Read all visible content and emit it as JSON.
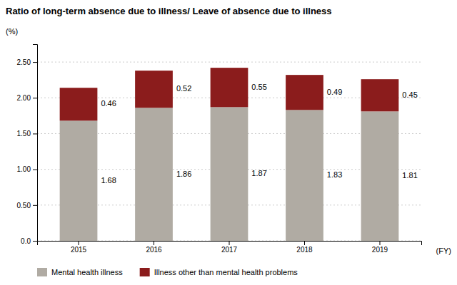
{
  "chart_data": {
    "type": "bar",
    "title": "Ratio of long-term absence due to illness/ Leave of absence due to illness",
    "ylabel": "(%)",
    "xlabel": "(FY)",
    "categories": [
      "2015",
      "2016",
      "2017",
      "2018",
      "2019"
    ],
    "series": [
      {
        "name": "Mental health illness",
        "color": "#b0aba3",
        "values": [
          1.68,
          1.86,
          1.87,
          1.83,
          1.81
        ]
      },
      {
        "name": "Illness other than mental health problems",
        "color": "#8b1c1c",
        "values": [
          0.46,
          0.52,
          0.55,
          0.49,
          0.45
        ]
      }
    ],
    "stacked": true,
    "data_labels": true,
    "ylim": [
      0,
      2.75
    ],
    "yticks": [
      {
        "value": 0,
        "label": "0.0"
      },
      {
        "value": 0.5,
        "label": "0.50"
      },
      {
        "value": 1,
        "label": "1.00"
      },
      {
        "value": 1.5,
        "label": "1.50"
      },
      {
        "value": 2,
        "label": "2.00"
      },
      {
        "value": 2.5,
        "label": "2.50"
      }
    ],
    "grid": true,
    "legend": "bottom-left"
  }
}
